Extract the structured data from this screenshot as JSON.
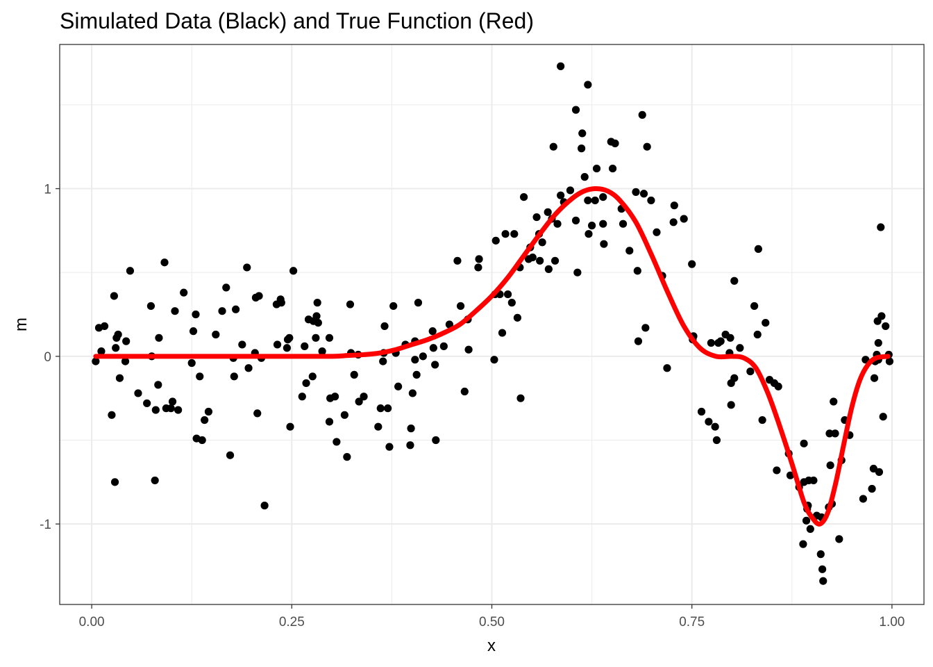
{
  "chart_data": {
    "type": "scatter",
    "title": "Simulated Data (Black) and True Function (Red)",
    "xlabel": "x",
    "ylabel": "m",
    "xlim": [
      -0.04,
      1.04
    ],
    "ylim": [
      -1.48,
      1.86
    ],
    "x_ticks": [
      {
        "value": 0,
        "label": "0.00"
      },
      {
        "value": 0.25,
        "label": "0.25"
      },
      {
        "value": 0.5,
        "label": "0.50"
      },
      {
        "value": 0.75,
        "label": "0.75"
      },
      {
        "value": 1,
        "label": "1.00"
      }
    ],
    "y_ticks": [
      {
        "value": -1,
        "label": "-1"
      },
      {
        "value": 0,
        "label": "0"
      },
      {
        "value": 1,
        "label": "1"
      }
    ],
    "grid": true,
    "legend": "none",
    "colors": {
      "points": "#000000",
      "line": "#ff0000",
      "grid": "#ebebeb",
      "panel_border": "#333333"
    },
    "series": [
      {
        "type": "scatter",
        "color": "#000000",
        "points": [
          [
            0.005,
            -0.03
          ],
          [
            0.009,
            0.17
          ],
          [
            0.012,
            0.03
          ],
          [
            0.016,
            0.18
          ],
          [
            0.025,
            -0.35
          ],
          [
            0.028,
            0.36
          ],
          [
            0.029,
            -0.75
          ],
          [
            0.03,
            0.05
          ],
          [
            0.031,
            0.11
          ],
          [
            0.033,
            0.13
          ],
          [
            0.035,
            -0.13
          ],
          [
            0.042,
            -0.03
          ],
          [
            0.043,
            0.09
          ],
          [
            0.048,
            0.51
          ],
          [
            0.058,
            -0.22
          ],
          [
            0.069,
            -0.28
          ],
          [
            0.074,
            0.3
          ],
          [
            0.075,
            0.0
          ],
          [
            0.079,
            -0.74
          ],
          [
            0.08,
            -0.32
          ],
          [
            0.083,
            -0.17
          ],
          [
            0.084,
            0.11
          ],
          [
            0.091,
            0.56
          ],
          [
            0.093,
            -0.31
          ],
          [
            0.099,
            -0.31
          ],
          [
            0.101,
            -0.27
          ],
          [
            0.104,
            0.27
          ],
          [
            0.108,
            -0.32
          ],
          [
            0.115,
            0.38
          ],
          [
            0.125,
            -0.04
          ],
          [
            0.127,
            0.15
          ],
          [
            0.13,
            0.25
          ],
          [
            0.131,
            -0.49
          ],
          [
            0.135,
            -0.12
          ],
          [
            0.138,
            -0.5
          ],
          [
            0.141,
            -0.38
          ],
          [
            0.146,
            -0.33
          ],
          [
            0.155,
            0.13
          ],
          [
            0.163,
            0.27
          ],
          [
            0.168,
            0.41
          ],
          [
            0.173,
            -0.59
          ],
          [
            0.177,
            -0.01
          ],
          [
            0.178,
            -0.12
          ],
          [
            0.18,
            0.28
          ],
          [
            0.188,
            0.07
          ],
          [
            0.194,
            0.53
          ],
          [
            0.196,
            -0.07
          ],
          [
            0.204,
            0.02
          ],
          [
            0.205,
            0.35
          ],
          [
            0.207,
            -0.34
          ],
          [
            0.209,
            0.36
          ],
          [
            0.212,
            -0.01
          ],
          [
            0.216,
            -0.89
          ],
          [
            0.231,
            0.31
          ],
          [
            0.232,
            0.07
          ],
          [
            0.236,
            0.34
          ],
          [
            0.237,
            0.32
          ],
          [
            0.244,
            0.05
          ],
          [
            0.245,
            0.1
          ],
          [
            0.247,
            0.11
          ],
          [
            0.248,
            -0.42
          ],
          [
            0.252,
            0.51
          ],
          [
            0.263,
            -0.24
          ],
          [
            0.266,
            0.06
          ],
          [
            0.268,
            -0.16
          ],
          [
            0.271,
            0.22
          ],
          [
            0.276,
            -0.12
          ],
          [
            0.277,
            0.21
          ],
          [
            0.28,
            0.11
          ],
          [
            0.281,
            0.24
          ],
          [
            0.282,
            0.32
          ],
          [
            0.283,
            0.2
          ],
          [
            0.288,
            0.03
          ],
          [
            0.297,
            0.11
          ],
          [
            0.297,
            -0.39
          ],
          [
            0.298,
            -0.25
          ],
          [
            0.304,
            -0.24
          ],
          [
            0.306,
            -0.51
          ],
          [
            0.316,
            -0.35
          ],
          [
            0.319,
            -0.6
          ],
          [
            0.323,
            0.31
          ],
          [
            0.324,
            0.02
          ],
          [
            0.328,
            -0.11
          ],
          [
            0.333,
            0.01
          ],
          [
            0.334,
            -0.27
          ],
          [
            0.34,
            -0.24
          ],
          [
            0.358,
            -0.42
          ],
          [
            0.361,
            -0.31
          ],
          [
            0.364,
            -0.03
          ],
          [
            0.365,
            0.02
          ],
          [
            0.366,
            0.18
          ],
          [
            0.37,
            -0.31
          ],
          [
            0.372,
            -0.54
          ],
          [
            0.377,
            0.3
          ],
          [
            0.38,
            0.02
          ],
          [
            0.383,
            -0.18
          ],
          [
            0.392,
            0.07
          ],
          [
            0.398,
            -0.53
          ],
          [
            0.399,
            -0.43
          ],
          [
            0.401,
            -0.22
          ],
          [
            0.404,
            0.09
          ],
          [
            0.404,
            -0.02
          ],
          [
            0.406,
            -0.11
          ],
          [
            0.408,
            0.32
          ],
          [
            0.414,
            0.0
          ],
          [
            0.426,
            0.15
          ],
          [
            0.427,
            0.05
          ],
          [
            0.429,
            -0.05
          ],
          [
            0.43,
            -0.5
          ],
          [
            0.44,
            0.06
          ],
          [
            0.447,
            0.19
          ],
          [
            0.457,
            0.57
          ],
          [
            0.461,
            0.3
          ],
          [
            0.466,
            -0.21
          ],
          [
            0.47,
            0.22
          ],
          [
            0.471,
            0.04
          ],
          [
            0.483,
            0.53
          ],
          [
            0.484,
            0.58
          ],
          [
            0.503,
            -0.02
          ],
          [
            0.504,
            0.37
          ],
          [
            0.505,
            0.69
          ],
          [
            0.51,
            0.37
          ],
          [
            0.513,
            0.14
          ],
          [
            0.517,
            0.73
          ],
          [
            0.52,
            0.37
          ],
          [
            0.525,
            0.32
          ],
          [
            0.528,
            0.73
          ],
          [
            0.532,
            0.23
          ],
          [
            0.535,
            0.53
          ],
          [
            0.536,
            -0.25
          ],
          [
            0.54,
            0.95
          ],
          [
            0.546,
            0.58
          ],
          [
            0.548,
            0.65
          ],
          [
            0.551,
            0.59
          ],
          [
            0.556,
            0.83
          ],
          [
            0.559,
            0.73
          ],
          [
            0.56,
            0.57
          ],
          [
            0.563,
            0.68
          ],
          [
            0.57,
            0.86
          ],
          [
            0.571,
            0.52
          ],
          [
            0.575,
            0.82
          ],
          [
            0.577,
            1.25
          ],
          [
            0.579,
            0.57
          ],
          [
            0.582,
            0.79
          ],
          [
            0.586,
            0.96
          ],
          [
            0.586,
            1.73
          ],
          [
            0.59,
            0.92
          ],
          [
            0.598,
            0.99
          ],
          [
            0.605,
            1.47
          ],
          [
            0.605,
            0.81
          ],
          [
            0.607,
            0.5
          ],
          [
            0.612,
            1.24
          ],
          [
            0.613,
            1.33
          ],
          [
            0.616,
            1.07
          ],
          [
            0.62,
            1.62
          ],
          [
            0.62,
            0.93
          ],
          [
            0.621,
            0.73
          ],
          [
            0.625,
            0.78
          ],
          [
            0.629,
            0.93
          ],
          [
            0.631,
            1.12
          ],
          [
            0.639,
            0.95
          ],
          [
            0.639,
            0.79
          ],
          [
            0.64,
            0.67
          ],
          [
            0.649,
            1.28
          ],
          [
            0.651,
            1.12
          ],
          [
            0.654,
            1.27
          ],
          [
            0.662,
            0.88
          ],
          [
            0.664,
            0.79
          ],
          [
            0.672,
            0.63
          ],
          [
            0.68,
            0.98
          ],
          [
            0.682,
            0.51
          ],
          [
            0.683,
            0.09
          ],
          [
            0.688,
            1.44
          ],
          [
            0.69,
            0.97
          ],
          [
            0.692,
            0.17
          ],
          [
            0.694,
            1.25
          ],
          [
            0.699,
            0.93
          ],
          [
            0.706,
            0.74
          ],
          [
            0.713,
            0.48
          ],
          [
            0.719,
            -0.07
          ],
          [
            0.727,
            0.8
          ],
          [
            0.728,
            0.9
          ],
          [
            0.74,
            0.82
          ],
          [
            0.75,
            0.55
          ],
          [
            0.751,
            0.1
          ],
          [
            0.752,
            0.12
          ],
          [
            0.762,
            -0.33
          ],
          [
            0.771,
            -0.39
          ],
          [
            0.774,
            0.08
          ],
          [
            0.779,
            -0.42
          ],
          [
            0.781,
            -0.5
          ],
          [
            0.783,
            0.08
          ],
          [
            0.786,
            0.09
          ],
          [
            0.792,
            0.13
          ],
          [
            0.797,
            0.02
          ],
          [
            0.798,
            0.11
          ],
          [
            0.799,
            -0.16
          ],
          [
            0.799,
            -0.29
          ],
          [
            0.803,
            -0.13
          ],
          [
            0.803,
            0.45
          ],
          [
            0.81,
            0.05
          ],
          [
            0.823,
            -0.09
          ],
          [
            0.828,
            0.3
          ],
          [
            0.832,
            0.13
          ],
          [
            0.833,
            0.64
          ],
          [
            0.838,
            -0.38
          ],
          [
            0.842,
            0.2
          ],
          [
            0.847,
            -0.14
          ],
          [
            0.853,
            -0.16
          ],
          [
            0.856,
            -0.68
          ],
          [
            0.858,
            -0.18
          ],
          [
            0.871,
            -0.58
          ],
          [
            0.873,
            -0.71
          ],
          [
            0.884,
            -0.78
          ],
          [
            0.889,
            -1.12
          ],
          [
            0.89,
            -0.52
          ],
          [
            0.89,
            -0.75
          ],
          [
            0.893,
            -0.98
          ],
          [
            0.894,
            -0.91
          ],
          [
            0.895,
            -0.89
          ],
          [
            0.896,
            -0.74
          ],
          [
            0.898,
            -1.03
          ],
          [
            0.902,
            -0.74
          ],
          [
            0.906,
            -0.95
          ],
          [
            0.911,
            -1.18
          ],
          [
            0.912,
            -0.96
          ],
          [
            0.913,
            -1.27
          ],
          [
            0.914,
            -1.34
          ],
          [
            0.921,
            -0.9
          ],
          [
            0.922,
            -0.46
          ],
          [
            0.923,
            -0.65
          ],
          [
            0.925,
            -0.88
          ],
          [
            0.927,
            -0.27
          ],
          [
            0.929,
            -0.46
          ],
          [
            0.934,
            -1.09
          ],
          [
            0.937,
            -0.62
          ],
          [
            0.941,
            -0.38
          ],
          [
            0.947,
            -0.47
          ],
          [
            0.964,
            -0.85
          ],
          [
            0.967,
            -0.02
          ],
          [
            0.975,
            -0.79
          ],
          [
            0.977,
            -0.67
          ],
          [
            0.978,
            -0.13
          ],
          [
            0.979,
            -0.03
          ],
          [
            0.981,
            0.01
          ],
          [
            0.982,
            0.21
          ],
          [
            0.983,
            0.08
          ],
          [
            0.983,
            -0.02
          ],
          [
            0.984,
            -0.69
          ],
          [
            0.986,
            0.77
          ],
          [
            0.987,
            0.24
          ],
          [
            0.989,
            -0.36
          ],
          [
            0.992,
            0.18
          ],
          [
            0.996,
            0.01
          ],
          [
            0.997,
            -0.03
          ]
        ]
      },
      {
        "type": "line",
        "color": "#ff0000",
        "points": [
          [
            0.005,
            0.0
          ],
          [
            0.1,
            0.0
          ],
          [
            0.2,
            0.0
          ],
          [
            0.25,
            0.0
          ],
          [
            0.3,
            0.0
          ],
          [
            0.32,
            0.005
          ],
          [
            0.34,
            0.01
          ],
          [
            0.36,
            0.02
          ],
          [
            0.38,
            0.04
          ],
          [
            0.4,
            0.07
          ],
          [
            0.42,
            0.1
          ],
          [
            0.44,
            0.14
          ],
          [
            0.46,
            0.19
          ],
          [
            0.48,
            0.27
          ],
          [
            0.5,
            0.36
          ],
          [
            0.52,
            0.47
          ],
          [
            0.54,
            0.6
          ],
          [
            0.56,
            0.73
          ],
          [
            0.58,
            0.85
          ],
          [
            0.6,
            0.94
          ],
          [
            0.615,
            0.985
          ],
          [
            0.63,
            1.0
          ],
          [
            0.645,
            0.985
          ],
          [
            0.66,
            0.93
          ],
          [
            0.68,
            0.8
          ],
          [
            0.7,
            0.6
          ],
          [
            0.72,
            0.38
          ],
          [
            0.74,
            0.18
          ],
          [
            0.76,
            0.05
          ],
          [
            0.78,
            0.0
          ],
          [
            0.8,
            0.0
          ],
          [
            0.815,
            -0.01
          ],
          [
            0.83,
            -0.07
          ],
          [
            0.845,
            -0.22
          ],
          [
            0.86,
            -0.42
          ],
          [
            0.875,
            -0.64
          ],
          [
            0.89,
            -0.87
          ],
          [
            0.9,
            -0.96
          ],
          [
            0.91,
            -1.0
          ],
          [
            0.92,
            -0.93
          ],
          [
            0.93,
            -0.75
          ],
          [
            0.94,
            -0.52
          ],
          [
            0.95,
            -0.3
          ],
          [
            0.96,
            -0.14
          ],
          [
            0.97,
            -0.05
          ],
          [
            0.98,
            -0.01
          ],
          [
            0.995,
            0.0
          ]
        ]
      }
    ]
  }
}
